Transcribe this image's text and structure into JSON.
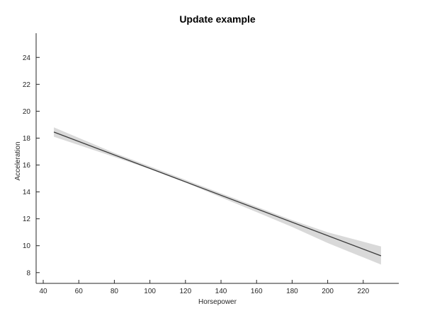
{
  "chart_data": {
    "type": "line",
    "title": "Update example",
    "xlabel": "Horsepower",
    "ylabel": "Acceleration",
    "xlim": [
      36,
      240
    ],
    "ylim": [
      7.2,
      25.8
    ],
    "xticks": [
      40,
      60,
      80,
      100,
      120,
      140,
      160,
      180,
      200,
      220
    ],
    "yticks": [
      8,
      10,
      12,
      14,
      16,
      18,
      20,
      22,
      24
    ],
    "grid": false,
    "series": [
      {
        "x": [
          46,
          230
        ],
        "y": [
          18.45,
          9.25
        ],
        "color": "#3a3a3a"
      }
    ],
    "confidence_band": {
      "x": [
        46,
        80,
        100,
        120,
        140,
        160,
        180,
        200,
        230
      ],
      "lower": [
        18.1,
        16.6,
        15.7,
        14.7,
        13.6,
        12.5,
        11.4,
        10.2,
        8.6
      ],
      "upper": [
        18.8,
        16.9,
        15.9,
        14.9,
        13.9,
        12.9,
        11.9,
        11.0,
        9.95
      ],
      "color": "#d9d9d9"
    }
  }
}
